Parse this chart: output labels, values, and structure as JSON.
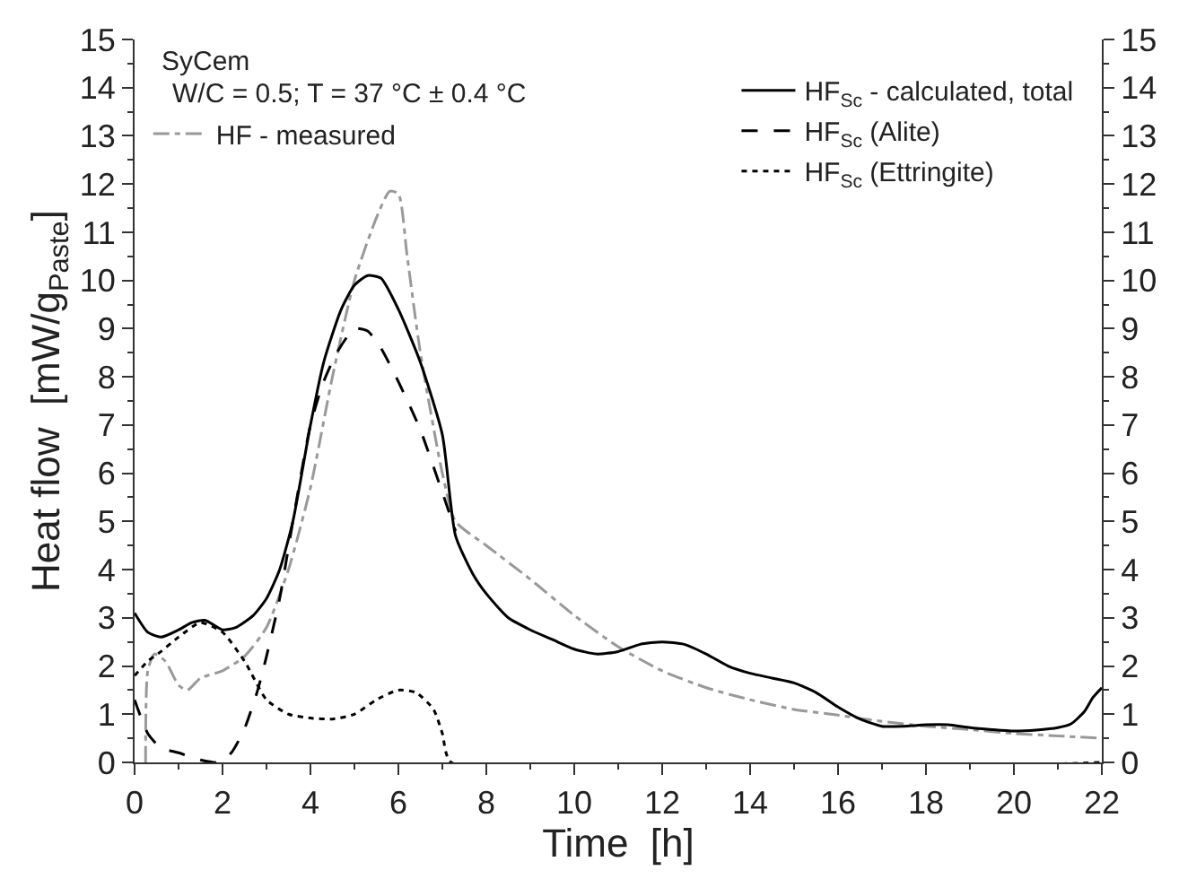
{
  "chart_data": {
    "type": "line",
    "xlabel": "Time  [h]",
    "ylabel": "Heat flow  [mW/g$_{Paste}$]",
    "annotations": [
      "SyCem",
      "W/C = 0.5; T = 37 °C ± 0.4 °C"
    ],
    "xlim": [
      0,
      22
    ],
    "xticks": [
      0,
      2,
      4,
      6,
      8,
      10,
      12,
      14,
      16,
      18,
      20,
      22
    ],
    "ylim": [
      0,
      15
    ],
    "yticks": [
      0,
      1,
      2,
      3,
      4,
      5,
      6,
      7,
      8,
      9,
      10,
      11,
      12,
      13,
      14,
      15
    ],
    "y2lim": [
      0,
      15
    ],
    "y2ticks": [
      0,
      1,
      2,
      3,
      4,
      5,
      6,
      7,
      8,
      9,
      10,
      11,
      12,
      13,
      14,
      15
    ],
    "legend": "top right",
    "marker": "none",
    "series": [
      {
        "name": "HF - measured",
        "color": "#999999",
        "line_style": "dashdot",
        "x": [
          0.25,
          0.3,
          0.45,
          0.7,
          1.0,
          1.2,
          1.5,
          2.0,
          2.5,
          3.0,
          3.5,
          4.0,
          4.5,
          5.0,
          5.5,
          5.8,
          6.0,
          6.2,
          6.5,
          7.0,
          7.3,
          8.0,
          9.0,
          10.0,
          11.0,
          12.0,
          13.0,
          14.0,
          15.0,
          16.0,
          17.0,
          18.0,
          19.0,
          20.0,
          21.0,
          22.0
        ],
        "values": [
          0,
          1.9,
          2.25,
          2.1,
          1.6,
          1.5,
          1.75,
          1.9,
          2.2,
          2.8,
          4.0,
          5.7,
          8.0,
          10.0,
          11.3,
          11.85,
          11.8,
          10.5,
          8.5,
          6.0,
          5.0,
          4.5,
          3.8,
          3.05,
          2.4,
          1.9,
          1.55,
          1.3,
          1.1,
          0.98,
          0.85,
          0.75,
          0.68,
          0.6,
          0.55,
          0.5
        ]
      },
      {
        "name": "HF$_{Sc}$ - calculated, total",
        "color": "#000000",
        "line_style": "solid",
        "x": [
          0,
          0.3,
          0.6,
          1.0,
          1.3,
          1.6,
          2.0,
          2.3,
          2.7,
          3.0,
          3.3,
          3.6,
          4.0,
          4.3,
          4.7,
          5.0,
          5.3,
          5.6,
          6.0,
          6.5,
          7.0,
          7.3,
          7.7,
          8.0,
          8.5,
          9.0,
          9.5,
          10.0,
          10.5,
          11.0,
          11.5,
          12.0,
          12.5,
          13.0,
          13.5,
          14.0,
          14.5,
          15.0,
          15.5,
          16.0,
          16.5,
          17.0,
          17.5,
          18.0,
          18.5,
          19.0,
          19.5,
          20.0,
          20.5,
          21.0,
          21.3,
          21.6,
          21.8,
          22.0
        ],
        "values": [
          3.1,
          2.7,
          2.6,
          2.75,
          2.9,
          2.95,
          2.75,
          2.8,
          3.05,
          3.4,
          4.0,
          5.0,
          7.0,
          8.3,
          9.4,
          9.9,
          10.1,
          10.05,
          9.4,
          8.3,
          6.8,
          4.7,
          3.9,
          3.5,
          3.0,
          2.75,
          2.55,
          2.35,
          2.25,
          2.3,
          2.45,
          2.5,
          2.45,
          2.25,
          2.0,
          1.85,
          1.75,
          1.65,
          1.45,
          1.15,
          0.9,
          0.75,
          0.75,
          0.78,
          0.78,
          0.72,
          0.68,
          0.65,
          0.67,
          0.72,
          0.8,
          1.05,
          1.35,
          1.55
        ]
      },
      {
        "name": "HF$_{Sc}$ (Alite)",
        "color": "#000000",
        "line_style": "dashed",
        "x": [
          0,
          0.3,
          0.6,
          1.0,
          1.5,
          1.9,
          2.2,
          2.5,
          2.8,
          3.0,
          3.3,
          3.6,
          4.0,
          4.3,
          4.6,
          5.0,
          5.3,
          5.6,
          6.0,
          6.5,
          7.0,
          7.3
        ],
        "values": [
          1.3,
          0.6,
          0.3,
          0.2,
          0.05,
          0.0,
          0.2,
          0.7,
          1.5,
          2.2,
          3.4,
          5.0,
          7.0,
          7.9,
          8.5,
          9.0,
          8.95,
          8.6,
          7.9,
          6.9,
          5.6,
          4.8
        ]
      },
      {
        "name": "HF$_{Sc}$ (Ettringite)",
        "color": "#000000",
        "line_style": "dotted",
        "x": [
          0,
          0.3,
          0.6,
          1.0,
          1.5,
          2.0,
          2.5,
          3.0,
          3.5,
          4.0,
          4.5,
          5.0,
          5.5,
          6.0,
          6.4,
          6.8,
          7.0,
          7.2,
          22
        ],
        "values": [
          1.8,
          2.1,
          2.3,
          2.6,
          2.9,
          2.7,
          2.1,
          1.3,
          1.0,
          0.92,
          0.9,
          1.0,
          1.3,
          1.5,
          1.45,
          1.1,
          0.6,
          0.0,
          0.0
        ]
      }
    ]
  }
}
